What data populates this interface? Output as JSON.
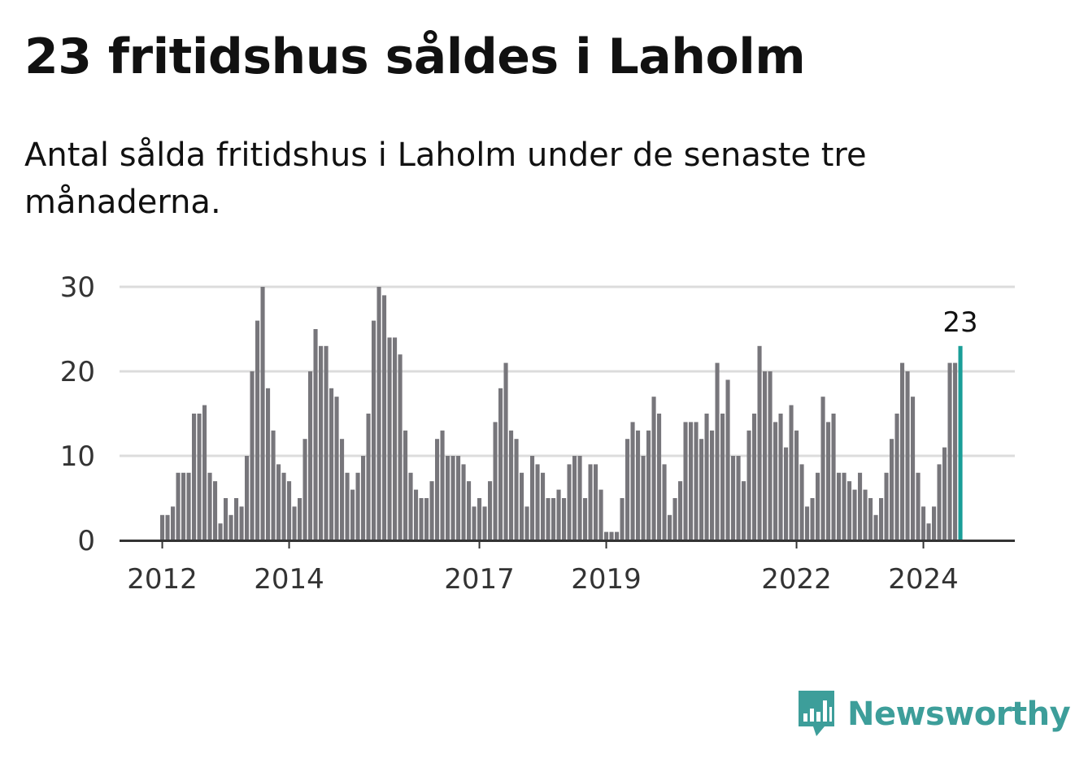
{
  "title": "23 fritidshus såldes i Laholm",
  "subtitle": "Antal sålda fritidshus i Laholm under de senaste tre månaderna.",
  "brand": {
    "name": "Newsworthy",
    "color": "#3d9e9a"
  },
  "chart_data": {
    "type": "bar",
    "title": "23 fritidshus såldes i Laholm",
    "subtitle": "Antal sålda fritidshus i Laholm under de senaste tre månaderna.",
    "xlabel": "",
    "ylabel": "",
    "ylim": [
      0,
      30
    ],
    "yticks": [
      0,
      10,
      20,
      30
    ],
    "grid": true,
    "start": "2012-01",
    "xticks": [
      "2012",
      "2014",
      "2017",
      "2019",
      "2022",
      "2024"
    ],
    "bar_color": "#77767b",
    "highlight_color": "#1a9e98",
    "highlight_label": "23",
    "values": [
      3,
      3,
      4,
      8,
      8,
      8,
      15,
      15,
      16,
      8,
      7,
      2,
      5,
      3,
      5,
      4,
      10,
      20,
      26,
      30,
      18,
      13,
      9,
      8,
      7,
      4,
      5,
      12,
      20,
      25,
      23,
      23,
      18,
      17,
      12,
      8,
      6,
      8,
      10,
      15,
      26,
      30,
      29,
      24,
      24,
      22,
      13,
      8,
      6,
      5,
      5,
      7,
      12,
      13,
      10,
      10,
      10,
      9,
      7,
      4,
      5,
      4,
      7,
      14,
      18,
      21,
      13,
      12,
      8,
      4,
      10,
      9,
      8,
      5,
      5,
      6,
      5,
      9,
      10,
      10,
      5,
      9,
      9,
      6,
      1,
      1,
      1,
      5,
      12,
      14,
      13,
      10,
      13,
      17,
      15,
      9,
      3,
      5,
      7,
      14,
      14,
      14,
      12,
      15,
      13,
      21,
      15,
      19,
      10,
      10,
      7,
      13,
      15,
      23,
      20,
      20,
      14,
      15,
      11,
      16,
      13,
      9,
      4,
      5,
      8,
      17,
      14,
      15,
      8,
      8,
      7,
      6,
      8,
      6,
      5,
      3,
      5,
      8,
      12,
      15,
      21,
      20,
      17,
      8,
      4,
      2,
      4,
      9,
      11,
      21,
      21,
      23
    ]
  }
}
